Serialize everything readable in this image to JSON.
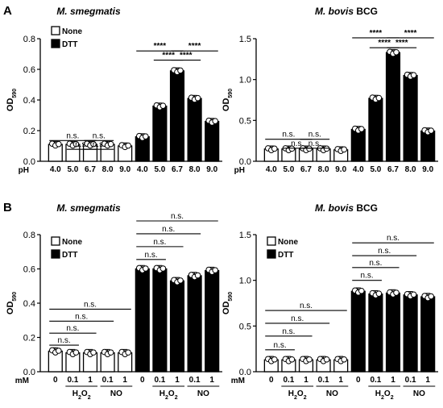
{
  "panel_letters": [
    "A",
    "B"
  ],
  "legend": {
    "none": "None",
    "dtt": "DTT"
  },
  "chart_data": [
    {
      "type": "bar",
      "panel": "A",
      "title": "M. smegmatis",
      "ylabel": "OD",
      "ylabel_sub": "590",
      "ylim": [
        0,
        0.8
      ],
      "yticks": [
        "0.0",
        "0.2",
        "0.4",
        "0.6",
        "0.8"
      ],
      "x_prefix": "pH",
      "categories": [
        "4.0",
        "5.0",
        "6.7",
        "8.0",
        "9.0",
        "4.0",
        "5.0",
        "6.7",
        "8.0",
        "9.0"
      ],
      "series": [
        {
          "name": "None",
          "values": [
            0.11,
            0.11,
            0.11,
            0.11,
            0.1,
            null,
            null,
            null,
            null,
            null
          ]
        },
        {
          "name": "DTT",
          "values": [
            null,
            null,
            null,
            null,
            null,
            0.16,
            0.36,
            0.59,
            0.41,
            0.26
          ]
        }
      ],
      "significance": [
        {
          "label": "n.s.",
          "from": 0,
          "to": 2,
          "level": 0.135
        },
        {
          "label": "n.s.",
          "from": 2,
          "to": 3,
          "level": 0.135
        },
        {
          "label": "n.s.",
          "from": 1,
          "to": 2,
          "level": 0.078
        },
        {
          "label": "n.s.",
          "from": 2,
          "to": 3,
          "level": 0.078
        },
        {
          "label": "****",
          "from": 5,
          "to": 7,
          "level": 0.72
        },
        {
          "label": "****",
          "from": 7,
          "to": 9,
          "level": 0.72
        },
        {
          "label": "****",
          "from": 6,
          "to": 7,
          "level": 0.66
        },
        {
          "label": "****",
          "from": 7,
          "to": 8,
          "level": 0.66
        }
      ]
    },
    {
      "type": "bar",
      "panel": "A",
      "title": "M. bovis BCG",
      "ylabel": "OD",
      "ylabel_sub": "590",
      "ylim": [
        0,
        1.5
      ],
      "yticks": [
        "0.0",
        "0.5",
        "1.0",
        "1.5"
      ],
      "x_prefix": "pH",
      "categories": [
        "4.0",
        "5.0",
        "6.7",
        "8.0",
        "9.0",
        "4.0",
        "5.0",
        "6.7",
        "8.0",
        "9.0"
      ],
      "series": [
        {
          "name": "None",
          "values": [
            0.15,
            0.15,
            0.15,
            0.15,
            0.14,
            null,
            null,
            null,
            null,
            null
          ]
        },
        {
          "name": "DTT",
          "values": [
            null,
            null,
            null,
            null,
            null,
            0.39,
            0.77,
            1.33,
            1.05,
            0.37
          ]
        }
      ],
      "significance": [
        {
          "label": "n.s.",
          "from": 0,
          "to": 2,
          "level": 0.27
        },
        {
          "label": "n.s.",
          "from": 2,
          "to": 3,
          "level": 0.27
        },
        {
          "label": "n.s.",
          "from": 1,
          "to": 2,
          "level": 0.16
        },
        {
          "label": "n.s.",
          "from": 2,
          "to": 3,
          "level": 0.16
        },
        {
          "label": "****",
          "from": 5,
          "to": 7,
          "level": 1.51
        },
        {
          "label": "****",
          "from": 7,
          "to": 9,
          "level": 1.51
        },
        {
          "label": "****",
          "from": 6,
          "to": 7,
          "level": 1.39
        },
        {
          "label": "****",
          "from": 7,
          "to": 8,
          "level": 1.39
        }
      ]
    },
    {
      "type": "bar",
      "panel": "B",
      "title": "M. smegmatis",
      "ylabel": "OD",
      "ylabel_sub": "590",
      "ylim": [
        0,
        0.8
      ],
      "yticks": [
        "0.0",
        "0.2",
        "0.4",
        "0.6",
        "0.8"
      ],
      "x_prefix": "mM",
      "categories": [
        "0",
        "0.1",
        "1",
        "0.1",
        "1",
        "0",
        "0.1",
        "1",
        "0.1",
        "1"
      ],
      "groups": [
        {
          "main": "H",
          "sub": "2",
          "tail": "O",
          "tail_sub": "2",
          "from": 1,
          "to": 2
        },
        {
          "main": "NO",
          "from": 3,
          "to": 4
        },
        {
          "main": "H",
          "sub": "2",
          "tail": "O",
          "tail_sub": "2",
          "from": 6,
          "to": 7
        },
        {
          "main": "NO",
          "from": 8,
          "to": 9
        }
      ],
      "series": [
        {
          "name": "None",
          "values": [
            0.12,
            0.11,
            0.11,
            0.11,
            0.11,
            null,
            null,
            null,
            null,
            null
          ]
        },
        {
          "name": "DTT",
          "values": [
            null,
            null,
            null,
            null,
            null,
            0.6,
            0.6,
            0.53,
            0.56,
            0.59
          ]
        }
      ],
      "significance": [
        {
          "label": "n.s.",
          "from": 0,
          "to": 1,
          "level": 0.155
        },
        {
          "label": "n.s.",
          "from": 0,
          "to": 2,
          "level": 0.225
        },
        {
          "label": "n.s.",
          "from": 0,
          "to": 3,
          "level": 0.295
        },
        {
          "label": "n.s.",
          "from": 0,
          "to": 4,
          "level": 0.365
        },
        {
          "label": "n.s.",
          "from": 5,
          "to": 6,
          "level": 0.655
        },
        {
          "label": "n.s.",
          "from": 5,
          "to": 7,
          "level": 0.73
        },
        {
          "label": "n.s.",
          "from": 5,
          "to": 8,
          "level": 0.805
        },
        {
          "label": "n.s.",
          "from": 5,
          "to": 9,
          "level": 0.88
        }
      ]
    },
    {
      "type": "bar",
      "panel": "B",
      "title": "M. bovis BCG",
      "ylabel": "OD",
      "ylabel_sub": "590",
      "ylim": [
        0,
        1.5
      ],
      "yticks": [
        "0.0",
        "0.5",
        "1.0",
        "1.5"
      ],
      "x_prefix": "mM",
      "categories": [
        "0",
        "0.1",
        "1",
        "0.1",
        "1",
        "0",
        "0.1",
        "1",
        "0.1",
        "1"
      ],
      "groups": [
        {
          "main": "H",
          "sub": "2",
          "tail": "O",
          "tail_sub": "2",
          "from": 1,
          "to": 2
        },
        {
          "main": "NO",
          "from": 3,
          "to": 4
        },
        {
          "main": "H",
          "sub": "2",
          "tail": "O",
          "tail_sub": "2",
          "from": 6,
          "to": 7
        },
        {
          "main": "NO",
          "from": 8,
          "to": 9
        }
      ],
      "series": [
        {
          "name": "None",
          "values": [
            0.13,
            0.13,
            0.13,
            0.13,
            0.13,
            null,
            null,
            null,
            null,
            null
          ]
        },
        {
          "name": "DTT",
          "values": [
            null,
            null,
            null,
            null,
            null,
            0.88,
            0.85,
            0.86,
            0.84,
            0.82
          ]
        }
      ],
      "significance": [
        {
          "label": "n.s.",
          "from": 0,
          "to": 1,
          "level": 0.24
        },
        {
          "label": "n.s.",
          "from": 0,
          "to": 2,
          "level": 0.39
        },
        {
          "label": "n.s.",
          "from": 0,
          "to": 3,
          "level": 0.53
        },
        {
          "label": "n.s.",
          "from": 0,
          "to": 4,
          "level": 0.67
        },
        {
          "label": "n.s.",
          "from": 5,
          "to": 6,
          "level": 1.0
        },
        {
          "label": "n.s.",
          "from": 5,
          "to": 7,
          "level": 1.14
        },
        {
          "label": "n.s.",
          "from": 5,
          "to": 8,
          "level": 1.27
        },
        {
          "label": "n.s.",
          "from": 5,
          "to": 9,
          "level": 1.41
        }
      ]
    }
  ]
}
